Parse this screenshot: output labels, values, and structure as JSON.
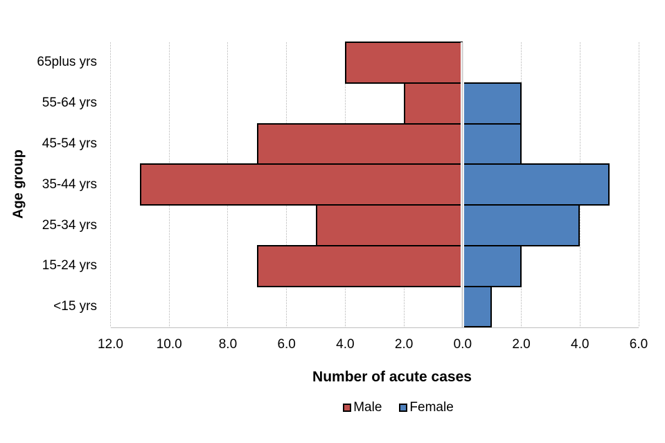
{
  "chart_data": {
    "type": "bar",
    "variant": "population-pyramid-diverging-horizontal",
    "title": "",
    "xlabel": "Number of acute cases",
    "ylabel": "Age group",
    "categories": [
      "65plus yrs",
      "55-64 yrs",
      "45-54 yrs",
      "35-44 yrs",
      "25-34 yrs",
      "15-24 yrs",
      "<15 yrs"
    ],
    "series": [
      {
        "name": "Male",
        "side": "left",
        "color": "#C0504D",
        "values": [
          4,
          2,
          7,
          11,
          5,
          7,
          0
        ]
      },
      {
        "name": "Female",
        "side": "right",
        "color": "#4F81BD",
        "values": [
          0,
          2,
          2,
          5,
          4,
          2,
          1
        ]
      }
    ],
    "xlim": [
      -12,
      6
    ],
    "x_tick_values": [
      -12,
      -10,
      -8,
      -6,
      -4,
      -2,
      0,
      2,
      4,
      6
    ],
    "x_tick_labels": [
      "12.0",
      "10.0",
      "8.0",
      "6.0",
      "4.0",
      "2.0",
      "0.0",
      "2.0",
      "4.0",
      "6.0"
    ],
    "grid": "vertical-gridlines-on",
    "legend_position": "bottom-center",
    "legend_labels": [
      "Male",
      "Female"
    ],
    "colors": {
      "male": "#C0504D",
      "female": "#4F81BD",
      "bar_border": "#000000",
      "gridline": "#cccccc",
      "axis_line": "#bfbfbf",
      "text": "#000000",
      "background": "#ffffff"
    }
  }
}
